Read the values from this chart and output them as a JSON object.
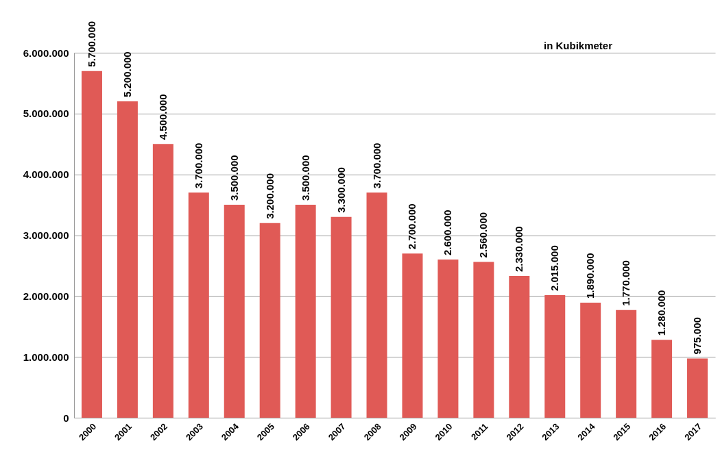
{
  "chart_data": {
    "type": "bar",
    "categories": [
      "2000",
      "2001",
      "2002",
      "2003",
      "2004",
      "2005",
      "2006",
      "2007",
      "2008",
      "2009",
      "2010",
      "2011",
      "2012",
      "2013",
      "2014",
      "2015",
      "2016",
      "2017"
    ],
    "values": [
      5700000,
      5200000,
      4500000,
      3700000,
      3500000,
      3200000,
      3500000,
      3300000,
      3700000,
      2700000,
      2600000,
      2560000,
      2330000,
      2015000,
      1890000,
      1770000,
      1280000,
      975000
    ],
    "value_labels": [
      "5.700.000",
      "5.200.000",
      "4.500.000",
      "3.700.000",
      "3.500.000",
      "3.200.000",
      "3.500.000",
      "3.300.000",
      "3.700.000",
      "2.700.000",
      "2.600.000",
      "2.560.000",
      "2.330.000",
      "2.015.000",
      "1.890.000",
      "1.770.000",
      "1.280.000",
      "975.000"
    ],
    "color": "#e05a56",
    "ylim": [
      0,
      6000000
    ],
    "yticks": [
      0,
      {
        "value": 1000000,
        "label": "1.000.000"
      },
      {
        "value": 2000000,
        "label": "2.000.000"
      },
      {
        "value": 3000000,
        "label": "3.000.000"
      },
      {
        "value": 4000000,
        "label": "4.000.000"
      },
      {
        "value": 5000000,
        "label": "5.000.000"
      },
      {
        "value": 6000000,
        "label": "6.000.000"
      }
    ],
    "grid": "y",
    "annotations": [
      "in Kubikmeter"
    ]
  }
}
